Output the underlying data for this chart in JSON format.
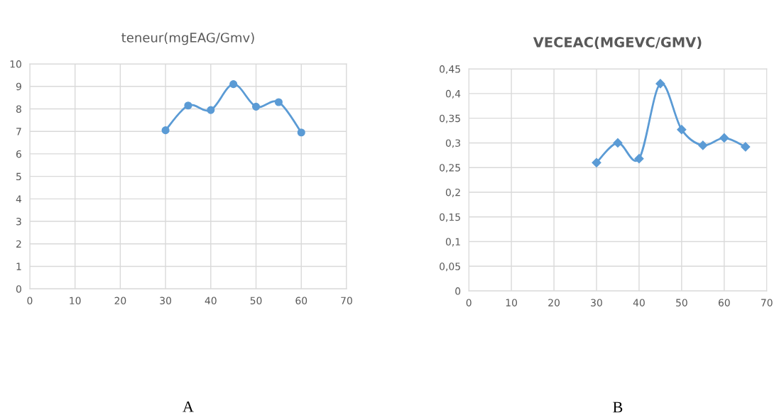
{
  "chart_data": [
    {
      "type": "line",
      "title": "teneur(mgEAG/Gmv)",
      "x": [
        30,
        35,
        40,
        45,
        50,
        55,
        60
      ],
      "series": [
        {
          "color": "#5b9bd5",
          "values": [
            7.05,
            8.15,
            7.95,
            9.1,
            8.1,
            8.3,
            6.95
          ]
        }
      ],
      "xlim": [
        0,
        70
      ],
      "xticks": [
        0,
        10,
        20,
        30,
        40,
        50,
        60,
        70
      ],
      "ylim": [
        0,
        10
      ],
      "yticks": [
        0,
        1,
        2,
        3,
        4,
        5,
        6,
        7,
        8,
        9,
        10
      ],
      "grid": true,
      "legend": false,
      "marker": "circle",
      "line_style": "solid",
      "annotations": [
        "A"
      ]
    },
    {
      "type": "line",
      "title": "VECEAC(MGEVC/GMV)",
      "x": [
        30,
        35,
        40,
        45,
        50,
        55,
        60,
        65
      ],
      "series": [
        {
          "color": "#5b9bd5",
          "values": [
            0.26,
            0.3,
            0.268,
            0.42,
            0.327,
            0.295,
            0.31,
            0.292
          ]
        }
      ],
      "xlim": [
        0,
        70
      ],
      "xticks": [
        0,
        10,
        20,
        30,
        40,
        50,
        60,
        70
      ],
      "ylim": [
        0,
        0.45
      ],
      "yticks": [
        0,
        {
          "value": 0.05,
          "label": "0,05"
        },
        {
          "value": 0.1,
          "label": "0,1"
        },
        {
          "value": 0.15,
          "label": "0,15"
        },
        {
          "value": 0.2,
          "label": "0,2"
        },
        {
          "value": 0.25,
          "label": "0,25"
        },
        {
          "value": 0.3,
          "label": "0,3"
        },
        {
          "value": 0.35,
          "label": "0,35"
        },
        {
          "value": 0.4,
          "label": "0,4"
        },
        {
          "value": 0.45,
          "label": "0,45"
        }
      ],
      "grid": true,
      "legend": false,
      "marker": "diamond",
      "line_style": "solid",
      "annotations": [
        "B"
      ]
    }
  ]
}
